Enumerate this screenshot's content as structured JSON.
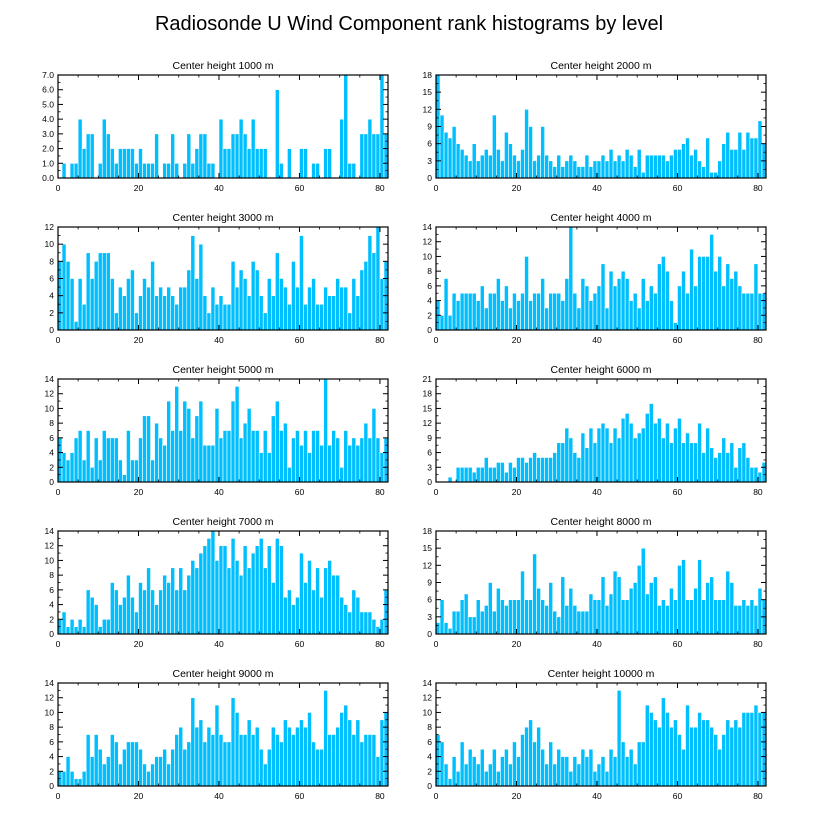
{
  "figure_title": "Radiosonde U Wind Component rank histograms by level",
  "colors": {
    "bar": "#00bfff",
    "bar_edge": "#ffffff",
    "axis": "#000000"
  },
  "chart_data": [
    {
      "type": "bar",
      "title": "Center height 1000 m",
      "xlim": [
        0,
        82
      ],
      "ylim": [
        0,
        7
      ],
      "xticks": [
        0,
        20,
        40,
        60,
        80
      ],
      "yticks": [
        0,
        1,
        2,
        3,
        4,
        5,
        6,
        7
      ],
      "ytick_labels": [
        "0.0",
        "1.0",
        "2.0",
        "3.0",
        "4.0",
        "5.0",
        "6.0",
        "7.0"
      ],
      "values": [
        0,
        1,
        0,
        1,
        1,
        4,
        2,
        3,
        3,
        0,
        1,
        4,
        3,
        2,
        1,
        2,
        2,
        2,
        2,
        1,
        2,
        1,
        1,
        1,
        3,
        0,
        1,
        1,
        3,
        1,
        0,
        1,
        3,
        1,
        2,
        3,
        3,
        1,
        1,
        0,
        4,
        2,
        2,
        3,
        3,
        4,
        3,
        2,
        4,
        2,
        2,
        2,
        0,
        0,
        6,
        1,
        0,
        2,
        0,
        0,
        2,
        2,
        0,
        1,
        1,
        0,
        2,
        2,
        0,
        0,
        4,
        7,
        1,
        1,
        0,
        3,
        3,
        4,
        3,
        3,
        7,
        3
      ],
      "stats": {
        "mean": 1.9,
        "sum": 156
      }
    },
    {
      "type": "bar",
      "title": "Center height 2000 m",
      "xlim": [
        0,
        82
      ],
      "ylim": [
        0,
        18
      ],
      "xticks": [
        0,
        20,
        40,
        60,
        80
      ],
      "yticks": [
        0,
        3,
        6,
        9,
        12,
        15,
        18
      ],
      "ytick_labels": [
        "0",
        "3",
        "6",
        "9",
        "12",
        "15",
        "18"
      ],
      "values": [
        18,
        11,
        8,
        7,
        9,
        6,
        5,
        4,
        3,
        6,
        3,
        4,
        5,
        4,
        11,
        5,
        3,
        8,
        6,
        4,
        3,
        5,
        12,
        9,
        3,
        4,
        9,
        4,
        3,
        2,
        4,
        2,
        3,
        4,
        3,
        2,
        2,
        4,
        2,
        3,
        3,
        4,
        3,
        5,
        3,
        4,
        3,
        5,
        4,
        2,
        5,
        1,
        4,
        4,
        4,
        4,
        4,
        3,
        4,
        5,
        5,
        6,
        7,
        4,
        5,
        3,
        2,
        7,
        1,
        1,
        3,
        6,
        8,
        5,
        5,
        8,
        5,
        8,
        7,
        7,
        10,
        6
      ],
      "stats": {
        "mean": 5.08,
        "sum": 417
      }
    },
    {
      "type": "bar",
      "title": "Center height 3000 m",
      "xlim": [
        0,
        82
      ],
      "ylim": [
        0,
        12
      ],
      "xticks": [
        0,
        20,
        40,
        60,
        80
      ],
      "yticks": [
        0,
        2,
        4,
        6,
        8,
        10,
        12
      ],
      "ytick_labels": [
        "0",
        "2",
        "4",
        "6",
        "8",
        "10",
        "12"
      ],
      "values": [
        8,
        10,
        8,
        6,
        1,
        6,
        3,
        9,
        6,
        8,
        9,
        9,
        9,
        6,
        2,
        5,
        4,
        6,
        7,
        2,
        4,
        6,
        5,
        8,
        4,
        5,
        4,
        5,
        4,
        3,
        5,
        5,
        7,
        11,
        6,
        10,
        4,
        2,
        5,
        3,
        4,
        3,
        3,
        8,
        5,
        7,
        6,
        4,
        8,
        7,
        4,
        2,
        6,
        4,
        9,
        6,
        5,
        3,
        8,
        5,
        11,
        3,
        5,
        6,
        3,
        3,
        5,
        4,
        4,
        6,
        5,
        5,
        2,
        6,
        4,
        7,
        8,
        11,
        9,
        12,
        6,
        8
      ],
      "stats": {
        "mean": 5.78,
        "sum": 474
      }
    },
    {
      "type": "bar",
      "title": "Center height 4000 m",
      "xlim": [
        0,
        82
      ],
      "ylim": [
        0,
        14
      ],
      "xticks": [
        0,
        20,
        40,
        60,
        80
      ],
      "yticks": [
        0,
        2,
        4,
        6,
        8,
        10,
        12,
        14
      ],
      "ytick_labels": [
        "0",
        "2",
        "4",
        "6",
        "8",
        "10",
        "12",
        "14"
      ],
      "values": [
        4,
        2,
        7,
        2,
        5,
        4,
        5,
        5,
        5,
        5,
        4,
        6,
        3,
        5,
        5,
        7,
        4,
        6,
        3,
        5,
        4,
        5,
        10,
        4,
        5,
        5,
        7,
        3,
        5,
        5,
        5,
        4,
        7,
        14,
        5,
        3,
        7,
        6,
        4,
        5,
        6,
        9,
        3,
        8,
        6,
        7,
        8,
        7,
        4,
        5,
        3,
        7,
        4,
        6,
        5,
        9,
        10,
        8,
        4,
        1,
        6,
        8,
        5,
        11,
        6,
        10,
        10,
        10,
        13,
        8,
        10,
        6,
        9,
        7,
        8,
        6,
        5,
        5,
        5,
        9,
        5,
        5
      ],
      "stats": {
        "mean": 6.04,
        "sum": 495
      }
    },
    {
      "type": "bar",
      "title": "Center height 5000 m",
      "xlim": [
        0,
        82
      ],
      "ylim": [
        0,
        14
      ],
      "xticks": [
        0,
        20,
        40,
        60,
        80
      ],
      "yticks": [
        0,
        2,
        4,
        6,
        8,
        10,
        12,
        14
      ],
      "ytick_labels": [
        "0",
        "2",
        "4",
        "6",
        "8",
        "10",
        "12",
        "14"
      ],
      "values": [
        6,
        4,
        3,
        4,
        6,
        7,
        3,
        7,
        2,
        6,
        3,
        7,
        6,
        6,
        6,
        3,
        1,
        7,
        3,
        3,
        6,
        9,
        9,
        3,
        8,
        6,
        5,
        11,
        7,
        13,
        7,
        11,
        10,
        6,
        9,
        11,
        5,
        5,
        5,
        10,
        6,
        7,
        7,
        11,
        13,
        6,
        8,
        10,
        7,
        7,
        4,
        7,
        4,
        9,
        11,
        7,
        8,
        2,
        6,
        7,
        5,
        7,
        4,
        7,
        7,
        5,
        14,
        5,
        7,
        6,
        2,
        7,
        5,
        6,
        5,
        6,
        8,
        6,
        10,
        6,
        4,
        6
      ],
      "stats": {
        "mean": 6.48,
        "sum": 531
      }
    },
    {
      "type": "bar",
      "title": "Center height 6000 m",
      "xlim": [
        0,
        82
      ],
      "ylim": [
        0,
        21
      ],
      "xticks": [
        0,
        20,
        40,
        60,
        80
      ],
      "yticks": [
        0,
        3,
        6,
        9,
        12,
        15,
        18,
        21
      ],
      "ytick_labels": [
        "0",
        "3",
        "6",
        "9",
        "12",
        "15",
        "18",
        "21"
      ],
      "values": [
        0,
        0,
        0,
        1,
        0,
        3,
        3,
        3,
        3,
        2,
        3,
        3,
        5,
        3,
        3,
        4,
        4,
        2,
        4,
        3,
        5,
        5,
        4,
        5,
        6,
        5,
        5,
        5,
        5,
        6,
        8,
        8,
        11,
        9,
        6,
        5,
        10,
        7,
        11,
        8,
        11,
        12,
        11,
        8,
        11,
        9,
        13,
        14,
        12,
        9,
        10,
        11,
        14,
        16,
        12,
        13,
        9,
        12,
        8,
        11,
        13,
        8,
        10,
        8,
        8,
        12,
        6,
        11,
        7,
        5,
        6,
        9,
        6,
        8,
        3,
        7,
        8,
        5,
        3,
        3,
        2,
        4
      ],
      "stats": {
        "mean": 7.02,
        "sum": 576
      }
    },
    {
      "type": "bar",
      "title": "Center height 7000 m",
      "xlim": [
        0,
        82
      ],
      "ylim": [
        0,
        14
      ],
      "xticks": [
        0,
        20,
        40,
        60,
        80
      ],
      "yticks": [
        0,
        2,
        4,
        6,
        8,
        10,
        12,
        14
      ],
      "ytick_labels": [
        "0",
        "2",
        "4",
        "6",
        "8",
        "10",
        "12",
        "14"
      ],
      "values": [
        2,
        3,
        1,
        2,
        1,
        2,
        1,
        6,
        5,
        4,
        1,
        2,
        2,
        7,
        6,
        4,
        5,
        8,
        5,
        3,
        7,
        6,
        9,
        6,
        4,
        6,
        8,
        7,
        9,
        6,
        9,
        6,
        8,
        10,
        9,
        11,
        12,
        13,
        14,
        10,
        12,
        12,
        9,
        13,
        10,
        8,
        12,
        9,
        11,
        12,
        13,
        9,
        12,
        7,
        13,
        12,
        5,
        6,
        4,
        5,
        11,
        7,
        10,
        6,
        9,
        5,
        9,
        10,
        8,
        8,
        5,
        4,
        3,
        6,
        5,
        3,
        3,
        3,
        2,
        1,
        2,
        6
      ],
      "stats": {
        "mean": 6.95,
        "sum": 570
      }
    },
    {
      "type": "bar",
      "title": "Center height 8000 m",
      "xlim": [
        0,
        82
      ],
      "ylim": [
        0,
        18
      ],
      "xticks": [
        0,
        20,
        40,
        60,
        80
      ],
      "yticks": [
        0,
        3,
        6,
        9,
        12,
        15,
        18
      ],
      "ytick_labels": [
        "0",
        "3",
        "6",
        "9",
        "12",
        "15",
        "18"
      ],
      "values": [
        2,
        6,
        2,
        1,
        4,
        4,
        6,
        7,
        3,
        3,
        6,
        4,
        5,
        9,
        4,
        8,
        6,
        5,
        6,
        6,
        6,
        11,
        6,
        6,
        14,
        8,
        6,
        5,
        9,
        4,
        3,
        10,
        5,
        8,
        5,
        4,
        4,
        4,
        7,
        6,
        6,
        10,
        5,
        7,
        11,
        10,
        6,
        6,
        8,
        9,
        12,
        15,
        7,
        9,
        10,
        5,
        6,
        5,
        8,
        6,
        12,
        13,
        6,
        6,
        8,
        13,
        6,
        9,
        10,
        6,
        6,
        6,
        11,
        9,
        5,
        5,
        6,
        5,
        6,
        5,
        8,
        6
      ],
      "stats": {
        "mean": 6.84,
        "sum": 561
      }
    },
    {
      "type": "bar",
      "title": "Center height 9000 m",
      "xlim": [
        0,
        82
      ],
      "ylim": [
        0,
        14
      ],
      "xticks": [
        0,
        20,
        40,
        60,
        80
      ],
      "yticks": [
        0,
        2,
        4,
        6,
        8,
        10,
        12,
        14
      ],
      "ytick_labels": [
        "0",
        "2",
        "4",
        "6",
        "8",
        "10",
        "12",
        "14"
      ],
      "values": [
        2,
        2,
        4,
        2,
        1,
        1,
        2,
        7,
        4,
        7,
        5,
        3,
        4,
        7,
        6,
        3,
        5,
        6,
        6,
        6,
        5,
        3,
        2,
        3,
        4,
        4,
        5,
        3,
        5,
        7,
        8,
        5,
        6,
        12,
        8,
        9,
        6,
        8,
        7,
        11,
        7,
        6,
        6,
        12,
        10,
        7,
        7,
        9,
        7,
        8,
        5,
        3,
        5,
        8,
        7,
        6,
        9,
        8,
        7,
        8,
        9,
        8,
        10,
        6,
        5,
        5,
        13,
        7,
        7,
        8,
        10,
        11,
        9,
        7,
        9,
        6,
        7,
        7,
        7,
        4,
        9,
        10
      ],
      "stats": {
        "mean": 6.38,
        "sum": 523
      }
    },
    {
      "type": "bar",
      "title": "Center height 10000 m",
      "xlim": [
        0,
        82
      ],
      "ylim": [
        0,
        14
      ],
      "xticks": [
        0,
        20,
        40,
        60,
        80
      ],
      "yticks": [
        0,
        2,
        4,
        6,
        8,
        10,
        12,
        14
      ],
      "ytick_labels": [
        "0",
        "2",
        "4",
        "6",
        "8",
        "10",
        "12",
        "14"
      ],
      "values": [
        7,
        6,
        3,
        1,
        4,
        2,
        6,
        3,
        5,
        4,
        3,
        5,
        2,
        3,
        5,
        2,
        4,
        5,
        3,
        6,
        4,
        7,
        8,
        9,
        6,
        8,
        5,
        3,
        6,
        3,
        5,
        4,
        4,
        2,
        4,
        3,
        5,
        4,
        5,
        2,
        3,
        4,
        2,
        5,
        4,
        13,
        6,
        4,
        5,
        3,
        6,
        6,
        11,
        10,
        9,
        8,
        12,
        10,
        8,
        9,
        7,
        5,
        11,
        8,
        8,
        10,
        9,
        9,
        8,
        7,
        5,
        7,
        9,
        8,
        9,
        8,
        10,
        10,
        10,
        11,
        10,
        10
      ],
      "stats": {
        "mean": 6.16,
        "sum": 505
      }
    }
  ]
}
